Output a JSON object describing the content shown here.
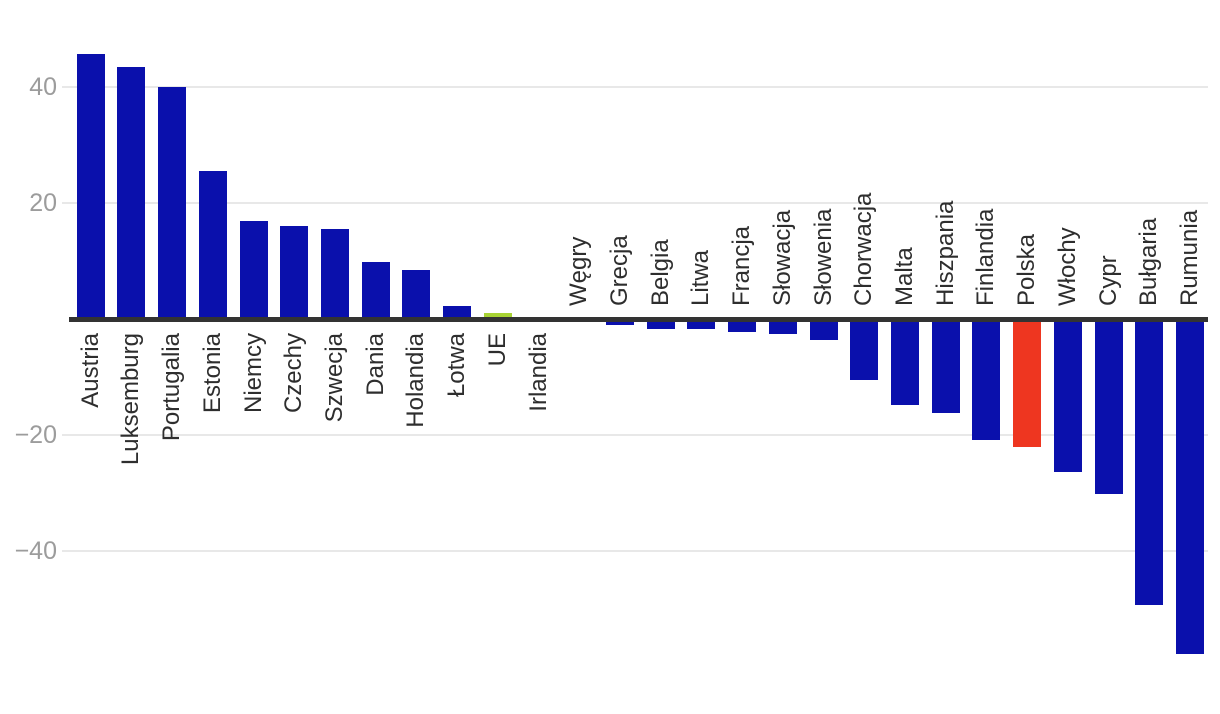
{
  "chart_data": {
    "type": "bar",
    "title": "",
    "legend": "none",
    "grid": "horizontal-lines",
    "axis_labels_rotated": true,
    "categories": [
      "Austria",
      "Luksemburg",
      "Portugalia",
      "Estonia",
      "Niemcy",
      "Czechy",
      "Szwecja",
      "Dania",
      "Holandia",
      "Łotwa",
      "UE",
      "Irlandia",
      "Węgry",
      "Grecja",
      "Belgia",
      "Litwa",
      "Francja",
      "Słowacja",
      "Słowenia",
      "Chorwacja",
      "Malta",
      "Hiszpania",
      "Finlandia",
      "Polska",
      "Włochy",
      "Cypr",
      "Bułgaria",
      "Rumunia"
    ],
    "values": [
      45.7,
      43.5,
      40.0,
      25.5,
      16.9,
      16.0,
      15.6,
      9.9,
      8.4,
      2.2,
      1.0,
      0.4,
      -0.6,
      -1.0,
      -1.7,
      -1.8,
      -2.2,
      -2.5,
      -3.6,
      -10.5,
      -14.8,
      -16.2,
      -20.9,
      -22.0,
      -26.4,
      -30.1,
      -49.3,
      -57.7
    ],
    "yticks": [
      {
        "label": "40",
        "value": 40
      },
      {
        "label": "20",
        "value": 20
      },
      {
        "label": "−20",
        "value": -20
      },
      {
        "label": "−40",
        "value": -40
      }
    ],
    "ylim": [
      -60,
      48
    ],
    "colors": {
      "bar_default": "#0a10ac",
      "grid_line": "#e8e8e8",
      "axis_line": "#333333",
      "tick_text": "#9c9c9c",
      "label_text": "#2e2e2e",
      "background": "#ffffff"
    },
    "bar_color_overrides": {
      "UE": "#a8d334",
      "Polska": "#ee3620"
    }
  }
}
